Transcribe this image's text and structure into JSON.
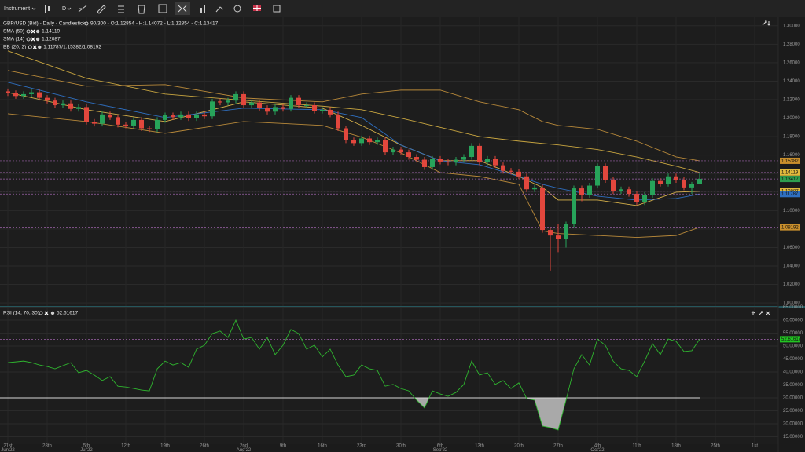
{
  "toolbar": {
    "instrument": "Instrument",
    "interval": "D"
  },
  "chart_data": [
    {
      "type": "candlestick",
      "title": "GBP/USD (Bid) - Daily - Candlestick",
      "subtitle": "90/300 - O:1.12854 - H:1.14072 - L:1.12854 - C:1.13417",
      "open": [
        1.229,
        1.227,
        1.224,
        1.226,
        1.228,
        1.222,
        1.219,
        1.214,
        1.216,
        1.21,
        1.212,
        1.196,
        1.194,
        1.204,
        1.201,
        1.193,
        1.192,
        1.198,
        1.189,
        1.188,
        1.198,
        1.203,
        1.201,
        1.204,
        1.2,
        1.204,
        1.202,
        1.218,
        1.217,
        1.219,
        1.226,
        1.214,
        1.217,
        1.211,
        1.207,
        1.212,
        1.21,
        1.222,
        1.214,
        1.214,
        1.208,
        1.209,
        1.204,
        1.189,
        1.176,
        1.173,
        1.178,
        1.174,
        1.176,
        1.163,
        1.166,
        1.163,
        1.158,
        1.155,
        1.147,
        1.156,
        1.153,
        1.152,
        1.155,
        1.158,
        1.17,
        1.152,
        1.156,
        1.149,
        1.143,
        1.142,
        1.137,
        1.123,
        1.125,
        1.079,
        1.073,
        1.069,
        1.085,
        1.124,
        1.117,
        1.127,
        1.148,
        1.133,
        1.121,
        1.123,
        1.118,
        1.109,
        1.117,
        1.132,
        1.129,
        1.137,
        1.133,
        1.125,
        1.12854
      ],
      "high": [
        1.232,
        1.23,
        1.229,
        1.231,
        1.231,
        1.225,
        1.222,
        1.219,
        1.219,
        1.215,
        1.215,
        1.199,
        1.207,
        1.207,
        1.204,
        1.196,
        1.201,
        1.201,
        1.192,
        1.201,
        1.206,
        1.206,
        1.207,
        1.207,
        1.207,
        1.207,
        1.221,
        1.221,
        1.222,
        1.229,
        1.229,
        1.22,
        1.22,
        1.214,
        1.215,
        1.215,
        1.225,
        1.225,
        1.217,
        1.217,
        1.212,
        1.212,
        1.207,
        1.192,
        1.179,
        1.181,
        1.181,
        1.179,
        1.179,
        1.169,
        1.169,
        1.166,
        1.161,
        1.158,
        1.159,
        1.159,
        1.156,
        1.158,
        1.161,
        1.173,
        1.173,
        1.159,
        1.159,
        1.152,
        1.146,
        1.145,
        1.14,
        1.128,
        1.128,
        1.082,
        1.085,
        1.088,
        1.127,
        1.127,
        1.13,
        1.151,
        1.151,
        1.136,
        1.126,
        1.126,
        1.121,
        1.12,
        1.135,
        1.135,
        1.14,
        1.14,
        1.136,
        1.131,
        1.14072
      ],
      "low": [
        1.224,
        1.221,
        1.221,
        1.223,
        1.219,
        1.216,
        1.211,
        1.211,
        1.207,
        1.207,
        1.193,
        1.191,
        1.191,
        1.198,
        1.19,
        1.189,
        1.189,
        1.186,
        1.185,
        1.185,
        1.195,
        1.198,
        1.198,
        1.197,
        1.197,
        1.199,
        1.199,
        1.214,
        1.214,
        1.216,
        1.211,
        1.211,
        1.208,
        1.204,
        1.204,
        1.207,
        1.207,
        1.211,
        1.211,
        1.205,
        1.205,
        1.201,
        1.186,
        1.173,
        1.17,
        1.17,
        1.171,
        1.171,
        1.16,
        1.16,
        1.16,
        1.155,
        1.152,
        1.144,
        1.144,
        1.15,
        1.149,
        1.149,
        1.152,
        1.155,
        1.149,
        1.149,
        1.146,
        1.14,
        1.139,
        1.134,
        1.12,
        1.12,
        1.076,
        1.035,
        1.055,
        1.06,
        1.082,
        1.11,
        1.114,
        1.124,
        1.13,
        1.118,
        1.118,
        1.115,
        1.106,
        1.106,
        1.114,
        1.126,
        1.126,
        1.13,
        1.122,
        1.118,
        1.12854
      ],
      "close": [
        1.227,
        1.224,
        1.226,
        1.228,
        1.222,
        1.219,
        1.214,
        1.216,
        1.21,
        1.212,
        1.196,
        1.194,
        1.204,
        1.201,
        1.193,
        1.192,
        1.198,
        1.189,
        1.188,
        1.198,
        1.203,
        1.201,
        1.204,
        1.2,
        1.204,
        1.202,
        1.218,
        1.217,
        1.219,
        1.226,
        1.214,
        1.217,
        1.211,
        1.207,
        1.212,
        1.21,
        1.222,
        1.214,
        1.214,
        1.208,
        1.209,
        1.204,
        1.189,
        1.176,
        1.173,
        1.178,
        1.174,
        1.176,
        1.163,
        1.166,
        1.163,
        1.158,
        1.155,
        1.147,
        1.156,
        1.153,
        1.152,
        1.155,
        1.158,
        1.17,
        1.152,
        1.156,
        1.149,
        1.143,
        1.142,
        1.137,
        1.123,
        1.125,
        1.079,
        1.073,
        1.069,
        1.085,
        1.124,
        1.117,
        1.127,
        1.148,
        1.133,
        1.121,
        1.123,
        1.118,
        1.109,
        1.117,
        1.132,
        1.129,
        1.137,
        1.133,
        1.125,
        1.12854,
        1.13417
      ],
      "up_color": "#27a35a",
      "down_color": "#e2473d",
      "ylim": [
        0.995,
        1.31
      ],
      "yticks": [
        {
          "value": 1.0,
          "label": "1.00000"
        },
        {
          "value": 1.02,
          "label": "1.02000"
        },
        {
          "value": 1.04,
          "label": "1.04000"
        },
        {
          "value": 1.06,
          "label": "1.06000"
        },
        {
          "value": 1.08,
          "label": "1.08000"
        },
        {
          "value": 1.1,
          "label": "1.10000"
        },
        {
          "value": 1.12,
          "label": "1.12000"
        },
        {
          "value": 1.14,
          "label": "1.14000"
        },
        {
          "value": 1.16,
          "label": "1.16000"
        },
        {
          "value": 1.18,
          "label": "1.18000"
        },
        {
          "value": 1.2,
          "label": "1.20000"
        },
        {
          "value": 1.22,
          "label": "1.22000"
        },
        {
          "value": 1.24,
          "label": "1.24000"
        },
        {
          "value": 1.26,
          "label": "1.26000"
        },
        {
          "value": 1.28,
          "label": "1.28000"
        },
        {
          "value": 1.3,
          "label": "1.30000"
        }
      ],
      "xticks": [
        {
          "value": 0,
          "label": "21st",
          "month": "Jun'22"
        },
        {
          "value": 5,
          "label": "28th"
        },
        {
          "value": 10,
          "label": "5th",
          "month": "Jul'22"
        },
        {
          "value": 15,
          "label": "12th"
        },
        {
          "value": 20,
          "label": "19th"
        },
        {
          "value": 25,
          "label": "26th"
        },
        {
          "value": 30,
          "label": "2nd",
          "month": "Aug'22"
        },
        {
          "value": 35,
          "label": "9th"
        },
        {
          "value": 40,
          "label": "16th"
        },
        {
          "value": 45,
          "label": "23rd"
        },
        {
          "value": 50,
          "label": "30th"
        },
        {
          "value": 55,
          "label": "6th",
          "month": "Sep'22"
        },
        {
          "value": 60,
          "label": "13th"
        },
        {
          "value": 65,
          "label": "20th"
        },
        {
          "value": 70,
          "label": "27th"
        },
        {
          "value": 75,
          "label": "4th",
          "month": "Oct'22"
        },
        {
          "value": 80,
          "label": "11th"
        },
        {
          "value": 85,
          "label": "18th"
        },
        {
          "value": 90,
          "label": "25th"
        },
        {
          "value": 95,
          "label": "1st"
        }
      ],
      "grid": true,
      "indicators": [
        {
          "name": "SMA (50)",
          "value": "1.14119"
        },
        {
          "name": "SMA (14)",
          "value": "1.12087"
        },
        {
          "name": "BB (20, 2)",
          "value": "1.11787/1.15382/1.08192"
        }
      ],
      "lines": [
        {
          "color": "#c9a640",
          "x": [
            0,
            10,
            20,
            30,
            40,
            45,
            50,
            55,
            60,
            65,
            70,
            75,
            80,
            85,
            88
          ],
          "values": [
            1.2728,
            1.2431,
            1.2261,
            1.2193,
            1.213,
            1.2091,
            1.2,
            1.19,
            1.18,
            1.1751,
            1.171,
            1.166,
            1.158,
            1.148,
            1.14119
          ]
        },
        {
          "color": "#d8b24a",
          "x": [
            0,
            10,
            20,
            30,
            40,
            45,
            50,
            55,
            60,
            65,
            68,
            70,
            75,
            80,
            85,
            88
          ],
          "values": [
            1.2278,
            1.2091,
            1.1963,
            1.2176,
            1.2108,
            1.1921,
            1.1709,
            1.1539,
            1.154,
            1.1369,
            1.125,
            1.1114,
            1.1114,
            1.1054,
            1.1199,
            1.12087
          ]
        },
        {
          "color": "#2f6fc0",
          "x": [
            0,
            10,
            20,
            30,
            40,
            45,
            50,
            55,
            60,
            65,
            68,
            70,
            75,
            80,
            85,
            88
          ],
          "values": [
            1.2388,
            1.2176,
            1.2006,
            1.2108,
            1.2091,
            1.2006,
            1.1709,
            1.1539,
            1.1496,
            1.1369,
            1.1284,
            1.1241,
            1.1156,
            1.1114,
            1.1131,
            1.11787
          ]
        },
        {
          "color": "#b8893a",
          "x": [
            0,
            10,
            20,
            30,
            40,
            45,
            50,
            55,
            60,
            65,
            68,
            70,
            75,
            80,
            85,
            88
          ],
          "values": [
            1.2516,
            1.2346,
            1.2363,
            1.2218,
            1.2176,
            1.2261,
            1.2303,
            1.2303,
            1.2176,
            1.2091,
            1.1963,
            1.1921,
            1.1879,
            1.1751,
            1.1581,
            1.15382
          ]
        },
        {
          "color": "#b8893a",
          "x": [
            0,
            10,
            20,
            30,
            40,
            45,
            50,
            55,
            60,
            65,
            68,
            70,
            75,
            80,
            85,
            88
          ],
          "values": [
            1.2048,
            1.1963,
            1.1836,
            1.1963,
            1.1921,
            1.1794,
            1.1624,
            1.1411,
            1.1369,
            1.1284,
            1.078,
            1.0752,
            1.073,
            1.0709,
            1.073,
            1.08192
          ]
        }
      ],
      "last_values": [
        {
          "value": 1.15382,
          "label": "1.15382",
          "color": "#c98f2c"
        },
        {
          "value": 1.14119,
          "label": "1.14119",
          "color": "#e0b93c"
        },
        {
          "value": 1.13417,
          "label": "1.13417",
          "color": "#2e9e4f"
        },
        {
          "value": 1.12087,
          "label": "1.12087",
          "color": "#e0b93c"
        },
        {
          "value": 1.11787,
          "label": "1.11787",
          "color": "#2f6fc0"
        },
        {
          "value": 1.08192,
          "label": "1.08192",
          "color": "#c98f2c"
        }
      ],
      "level_line_color": "#9b62a8"
    },
    {
      "type": "line",
      "title": "RSI (14, 70, 30)",
      "title_value": "52.61617",
      "color": "#2fb52f",
      "values": [
        43.6,
        43.9,
        44.2,
        43.6,
        42.7,
        42.1,
        41.2,
        42.4,
        43.6,
        39.7,
        40.6,
        38.8,
        36.7,
        38.2,
        34.5,
        34.2,
        33.6,
        33.0,
        32.7,
        41.2,
        44.2,
        42.7,
        43.6,
        41.8,
        48.8,
        50.3,
        54.8,
        55.8,
        53.3,
        60.0,
        52.7,
        53.3,
        48.8,
        53.3,
        46.7,
        50.3,
        56.4,
        54.8,
        48.8,
        50.3,
        45.8,
        48.8,
        42.7,
        38.2,
        38.8,
        42.7,
        41.2,
        40.6,
        34.5,
        35.2,
        33.6,
        32.7,
        29.1,
        26.1,
        32.7,
        31.5,
        30.6,
        32.1,
        35.2,
        44.2,
        38.8,
        39.7,
        35.2,
        36.7,
        33.6,
        35.8,
        29.7,
        29.1,
        19.1,
        18.5,
        17.6,
        29.1,
        41.2,
        46.7,
        42.7,
        52.7,
        50.3,
        44.2,
        41.2,
        40.6,
        38.2,
        44.2,
        50.9,
        46.7,
        52.7,
        51.8,
        47.9,
        48.2,
        52.61617
      ],
      "ylim": [
        12.5,
        65
      ],
      "yticks": [
        {
          "value": 15,
          "label": "15.00000"
        },
        {
          "value": 20,
          "label": "20.00000"
        },
        {
          "value": 25,
          "label": "25.00000"
        },
        {
          "value": 30,
          "label": "30.00000"
        },
        {
          "value": 35,
          "label": "35.00000"
        },
        {
          "value": 40,
          "label": "40.00000"
        },
        {
          "value": 45,
          "label": "45.00000"
        },
        {
          "value": 50,
          "label": "50.00000"
        },
        {
          "value": 55,
          "label": "55.00000"
        },
        {
          "value": 60,
          "label": "60.00000"
        },
        {
          "value": 65,
          "label": "65.00000"
        }
      ],
      "level": 30,
      "level_color": "#d8d8d8",
      "fill_color": "#a9a9a9",
      "last_value": {
        "value": 52.61617,
        "label": "52.61617",
        "color": "#22c422"
      }
    }
  ]
}
